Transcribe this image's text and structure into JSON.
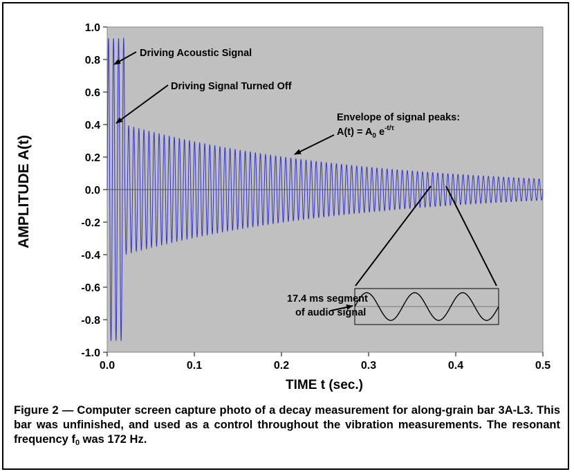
{
  "chart_data": {
    "type": "line",
    "title": "",
    "xlabel": "TIME t (sec.)",
    "ylabel": "AMPLITUDE  A(t)",
    "xlim": [
      0,
      0.5
    ],
    "ylim": [
      -1.0,
      1.0
    ],
    "x_ticks": [
      "0.0",
      "0.1",
      "0.2",
      "0.3",
      "0.4",
      "0.5"
    ],
    "y_ticks": [
      "1.0",
      "0.8",
      "0.6",
      "0.4",
      "0.2",
      "0.0",
      "-0.2",
      "-0.4",
      "-0.6",
      "-0.8",
      "-1.0"
    ],
    "grid": false,
    "legend": "none",
    "plot_background": "#c0c0c0",
    "series_color": "#3333cc",
    "signal": {
      "frequency_hz": 172,
      "drive_end_s": 0.02,
      "drive_amplitude": 0.93,
      "initial_decay_amplitude": 0.4,
      "amplitude_at_0_5s": 0.065
    },
    "annotations": {
      "driving": "Driving Acoustic Signal",
      "turned_off": "Driving Signal Turned Off",
      "envelope_line1": "Envelope of signal peaks:",
      "envelope_formula": "A(t) = A",
      "envelope_sub": "0",
      "envelope_e": " e",
      "envelope_sup": "-t/τ",
      "inset_label_line1": "17.4 ms segment",
      "inset_label_line2": "of audio signal"
    }
  },
  "caption": {
    "text_before": "Figure  2 — Computer screen capture photo of a decay measurement for along-grain bar 3A-L3.  This bar was unfinished, and used as a control throughout the vibration measurements.  The resonant frequency f",
    "subscript": "0",
    "text_after": " was 172 Hz."
  }
}
